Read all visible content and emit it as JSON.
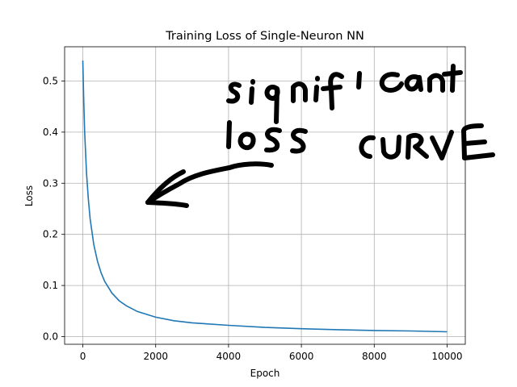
{
  "chart_data": {
    "type": "line",
    "title": "Training Loss of Single-Neuron NN",
    "xlabel": "Epoch",
    "ylabel": "Loss",
    "xlim": [
      -500,
      10500
    ],
    "ylim": [
      -0.015,
      0.567
    ],
    "xticks": [
      0,
      2000,
      4000,
      6000,
      8000,
      10000
    ],
    "xtick_labels": [
      "0",
      "2000",
      "4000",
      "6000",
      "8000",
      "10000"
    ],
    "yticks": [
      0.0,
      0.1,
      0.2,
      0.3,
      0.4,
      0.5
    ],
    "ytick_labels": [
      "0.0",
      "0.1",
      "0.2",
      "0.3",
      "0.4",
      "0.5"
    ],
    "grid": true,
    "series": [
      {
        "color": "#1f77b4",
        "x": [
          0,
          25,
          50,
          100,
          150,
          200,
          300,
          400,
          500,
          600,
          800,
          1000,
          1200,
          1500,
          2000,
          2500,
          3000,
          4000,
          5000,
          6000,
          7000,
          8000,
          9000,
          10000
        ],
        "y": [
          0.54,
          0.46,
          0.4,
          0.32,
          0.27,
          0.23,
          0.18,
          0.148,
          0.125,
          0.108,
          0.085,
          0.07,
          0.06,
          0.049,
          0.038,
          0.031,
          0.027,
          0.022,
          0.018,
          0.0155,
          0.0135,
          0.012,
          0.011,
          0.0095
        ]
      }
    ]
  },
  "annotation": {
    "text_lines": [
      "significant",
      "loss",
      "CURVE"
    ],
    "arrow_direction": "points to the curve"
  }
}
